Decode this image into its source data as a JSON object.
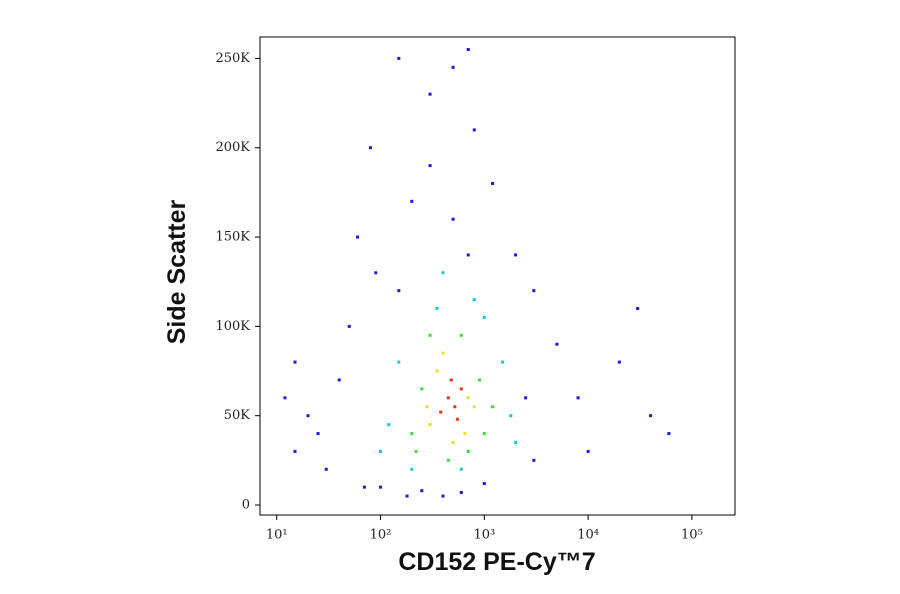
{
  "chart_data": {
    "type": "scatter",
    "x_label": "CD152 PE-Cy™7",
    "y_label": "Side Scatter",
    "xscale": "log",
    "xlim": [
      6.9,
      260000
    ],
    "xticks": [
      {
        "value": 10,
        "label": "10¹"
      },
      {
        "value": 100,
        "label": "10²"
      },
      {
        "value": 1000,
        "label": "10³"
      },
      {
        "value": 10000,
        "label": "10⁴"
      },
      {
        "value": 100000,
        "label": "10⁵"
      }
    ],
    "ylim": [
      -5600,
      262000
    ],
    "yticks": [
      0,
      {
        "value": 50000,
        "label": "50K"
      },
      {
        "value": 100000,
        "label": "100K"
      },
      {
        "value": 150000,
        "label": "150K"
      },
      {
        "value": 200000,
        "label": "200K"
      },
      {
        "value": 250000,
        "label": "250K"
      }
    ],
    "series": [
      {
        "color": "#1a1adc",
        "x": [
          15,
          20,
          30,
          12,
          25,
          60,
          80,
          150,
          200,
          300,
          500,
          800,
          1200,
          2000,
          3000,
          5000,
          8000,
          20000,
          40000,
          60000,
          100,
          250,
          400,
          600,
          1000,
          3000,
          150,
          300,
          500,
          700,
          50,
          90,
          10000,
          30000,
          700,
          15,
          40,
          70,
          180,
          2500
        ],
        "values": [
          30000,
          50000,
          20000,
          60000,
          40000,
          150000,
          200000,
          250000,
          170000,
          230000,
          245000,
          210000,
          180000,
          140000,
          120000,
          90000,
          60000,
          80000,
          50000,
          40000,
          10000,
          8000,
          5000,
          7000,
          12000,
          25000,
          120000,
          190000,
          160000,
          255000,
          100000,
          130000,
          30000,
          110000,
          140000,
          80000,
          70000,
          10000,
          5000,
          60000
        ]
      },
      {
        "color": "#18c8e0",
        "x": [
          120,
          150,
          1500,
          1800,
          350,
          800,
          200,
          600,
          100,
          2000,
          400,
          1000
        ],
        "values": [
          45000,
          80000,
          80000,
          50000,
          110000,
          115000,
          20000,
          20000,
          30000,
          35000,
          130000,
          105000
        ]
      },
      {
        "color": "#3cdc3c",
        "x": [
          200,
          250,
          900,
          1000,
          300,
          600,
          450,
          1200,
          220,
          700
        ],
        "values": [
          40000,
          65000,
          70000,
          40000,
          95000,
          95000,
          25000,
          55000,
          30000,
          30000
        ]
      },
      {
        "color": "#e8e020",
        "x": [
          300,
          350,
          700,
          650,
          400,
          800,
          280,
          500
        ],
        "values": [
          45000,
          75000,
          60000,
          40000,
          85000,
          55000,
          55000,
          35000
        ]
      },
      {
        "color": "#e83a10",
        "x": [
          450,
          520,
          600,
          380,
          480,
          550
        ],
        "values": [
          60000,
          55000,
          65000,
          52000,
          70000,
          48000
        ]
      }
    ]
  }
}
